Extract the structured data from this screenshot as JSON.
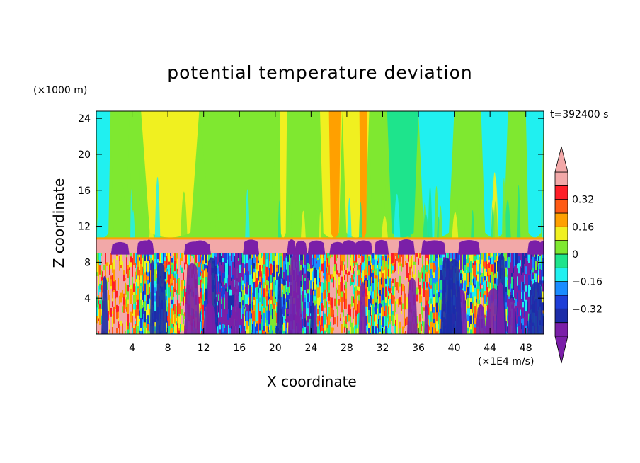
{
  "chart_data": {
    "type": "heatmap",
    "title": "potential temperature deviation",
    "xlabel": "X coordinate",
    "ylabel": "Z coordinate",
    "x_unit": "(×1E4 m/s)",
    "y_unit": "(×1000 m)",
    "time_label": "t=392400 s",
    "xlim": [
      0,
      50
    ],
    "ylim": [
      0,
      24.8
    ],
    "x_ticks": [
      4,
      8,
      12,
      16,
      20,
      24,
      28,
      32,
      36,
      40,
      44,
      48
    ],
    "y_ticks": [
      4,
      8,
      12,
      16,
      20,
      24
    ],
    "colorbar": {
      "levels": [
        -0.48,
        -0.4,
        -0.32,
        -0.24,
        -0.16,
        -0.08,
        0,
        0.08,
        0.16,
        0.24,
        0.32,
        0.4,
        0.48
      ],
      "colors": [
        "#7a1fa8",
        "#1c2ca8",
        "#1e3ed8",
        "#1a8cff",
        "#20f0f0",
        "#1ee48c",
        "#7fe830",
        "#f0f020",
        "#ffa000",
        "#ff5a14",
        "#ff1e28",
        "#f2a8a8"
      ],
      "under_color": "#7a1fa8",
      "over_color": "#f2a8a8",
      "tick_labels": [
        "0.32",
        "0.16",
        "0",
        "−0.16",
        "−0.32"
      ],
      "tick_values": [
        0.32,
        0.16,
        0,
        -0.16,
        -0.32
      ]
    },
    "upper_layer": {
      "z_range": [
        10.5,
        24.8
      ],
      "background_value": 0.02,
      "columns": [
        {
          "x0": 0.0,
          "x1": 1.6,
          "value": -0.1
        },
        {
          "x0": 1.6,
          "x1": 3.7,
          "value": 0.03
        },
        {
          "x0": 3.7,
          "x1": 5.0,
          "value": 0.05
        },
        {
          "x0": 5.0,
          "x1": 11.5,
          "value": 0.12
        },
        {
          "x0": 11.5,
          "x1": 20.5,
          "value": 0.04
        },
        {
          "x0": 20.5,
          "x1": 21.3,
          "value": 0.13
        },
        {
          "x0": 21.3,
          "x1": 25.0,
          "value": 0.05
        },
        {
          "x0": 25.0,
          "x1": 27.5,
          "value": 0.13
        },
        {
          "x0": 26.0,
          "x1": 27.3,
          "value": 0.2
        },
        {
          "x0": 27.5,
          "x1": 30.5,
          "value": 0.12
        },
        {
          "x0": 29.4,
          "x1": 30.3,
          "value": 0.2
        },
        {
          "x0": 30.5,
          "x1": 32.5,
          "value": 0.05
        },
        {
          "x0": 32.5,
          "x1": 36.0,
          "value": -0.05
        },
        {
          "x0": 36.0,
          "x1": 40.0,
          "value": -0.1
        },
        {
          "x0": 40.0,
          "x1": 43.0,
          "value": 0.02
        },
        {
          "x0": 43.0,
          "x1": 46.0,
          "value": -0.1
        },
        {
          "x0": 46.0,
          "x1": 48.0,
          "value": 0.03
        },
        {
          "x0": 48.0,
          "x1": 50.0,
          "value": -0.1
        }
      ]
    },
    "tropopause_band": {
      "z_range": [
        9.0,
        10.6
      ],
      "value": 0.46,
      "blobs_value": -0.46
    },
    "lower_layer": {
      "z_range": [
        0,
        9.0
      ],
      "value_range": [
        -0.48,
        0.48
      ]
    }
  }
}
